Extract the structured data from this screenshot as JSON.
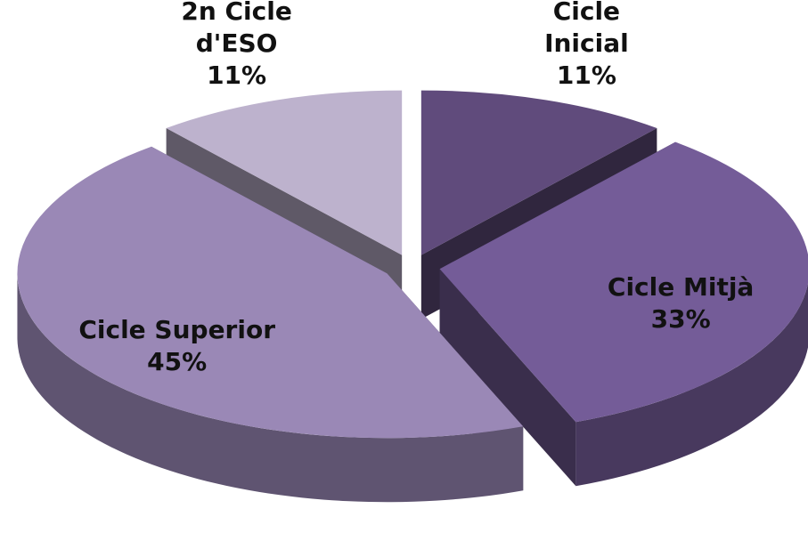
{
  "chart_data": {
    "type": "pie",
    "categories": [
      "Cicle Inicial",
      "Cicle Mitjà",
      "Cicle Superior",
      "2n Cicle d'ESO"
    ],
    "values": [
      11,
      33,
      45,
      11
    ],
    "value_labels": [
      "11%",
      "33%",
      "45%",
      "11%"
    ],
    "colors": [
      "#604b7c",
      "#745c98",
      "#9a88b6",
      "#bdb2cd"
    ]
  }
}
